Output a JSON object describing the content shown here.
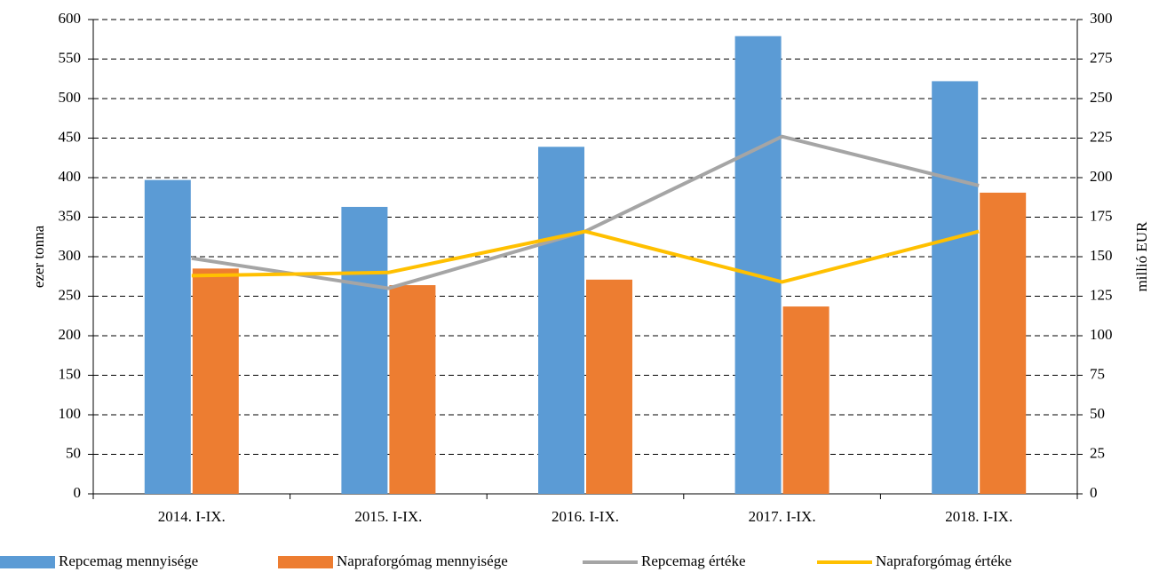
{
  "chart_data": {
    "type": "bar_line",
    "categories": [
      "2014. I-IX.",
      "2015. I-IX.",
      "2016. I-IX.",
      "2017. I-IX.",
      "2018. I-IX."
    ],
    "ylabel": "ezer tonna",
    "y2label": "millió EUR",
    "ylim": [
      0,
      600
    ],
    "yticks": [
      0,
      50,
      100,
      150,
      200,
      250,
      300,
      350,
      400,
      450,
      500,
      550,
      600
    ],
    "y2lim": [
      0,
      300
    ],
    "y2ticks": [
      0,
      25,
      50,
      75,
      100,
      125,
      150,
      175,
      200,
      225,
      250,
      275,
      300
    ],
    "grid": true,
    "legend": "bottom",
    "series": [
      {
        "name": "Repcemag mennyisége",
        "type": "bar",
        "color": "#5b9bd5",
        "values": [
          397,
          363,
          439,
          579,
          522
        ]
      },
      {
        "name": "Napraforgómag mennyisége",
        "type": "bar",
        "color": "#ed7d31",
        "values": [
          285,
          264,
          271,
          237,
          381
        ]
      },
      {
        "name": "Repcemag értéke",
        "type": "line",
        "axis": "y2",
        "color": "#a5a5a5",
        "values": [
          149,
          130,
          166,
          226,
          195
        ]
      },
      {
        "name": "Napraforgómag értéke",
        "type": "line",
        "axis": "y2",
        "color": "#ffc000",
        "values": [
          138,
          140,
          166,
          134,
          166
        ]
      }
    ]
  }
}
